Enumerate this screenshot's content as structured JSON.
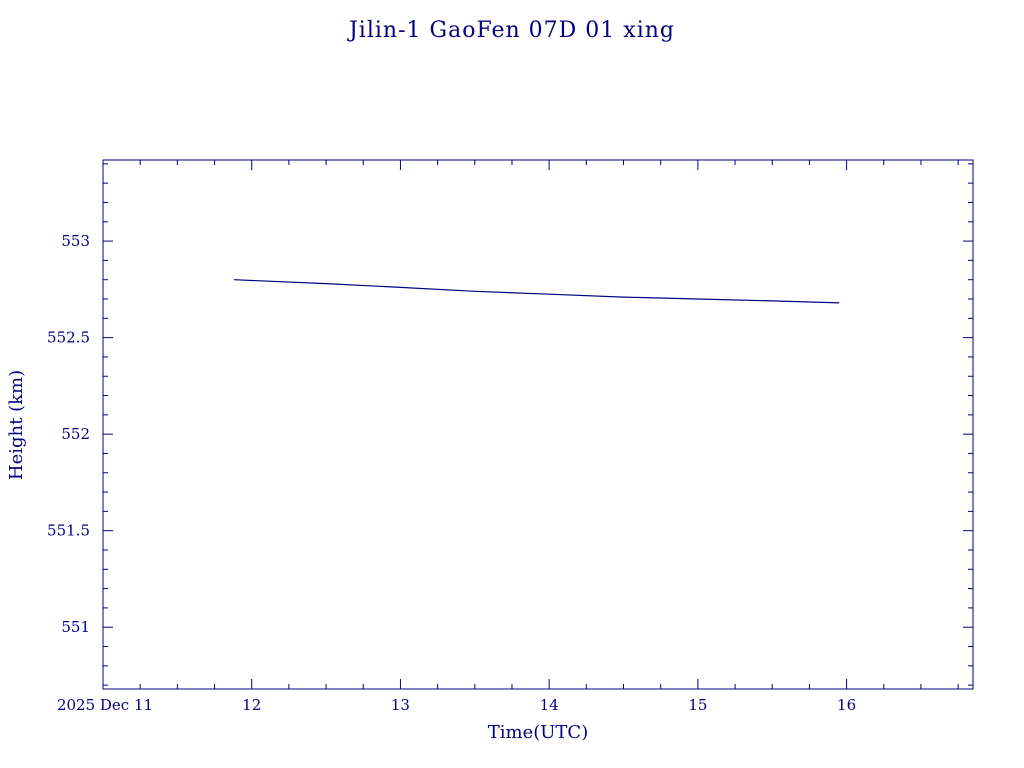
{
  "chart_data": {
    "type": "line",
    "title": "Jilin-1 GaoFen 07D 01 xing",
    "xlabel": "Time(UTC)",
    "ylabel": "Height (km)",
    "x_start_label": "2025 Dec 11",
    "xlim": [
      11,
      16.85
    ],
    "ylim": [
      550.68,
      553.42
    ],
    "x_ticks": [
      12,
      13,
      14,
      15,
      16
    ],
    "x_tick_labels": [
      "12",
      "13",
      "14",
      "15",
      "16"
    ],
    "y_ticks": [
      551,
      551.5,
      552,
      552.5,
      553
    ],
    "y_tick_labels": [
      "551",
      "551.5",
      "552",
      "552.5",
      "553"
    ],
    "grid": false,
    "color": "#000080",
    "series": [
      {
        "name": "",
        "x": [
          11.88,
          12.5,
          13.0,
          13.5,
          14.0,
          14.5,
          15.0,
          15.5,
          15.95
        ],
        "y": [
          552.8,
          552.78,
          552.76,
          552.74,
          552.725,
          552.71,
          552.7,
          552.69,
          552.68
        ]
      }
    ]
  }
}
